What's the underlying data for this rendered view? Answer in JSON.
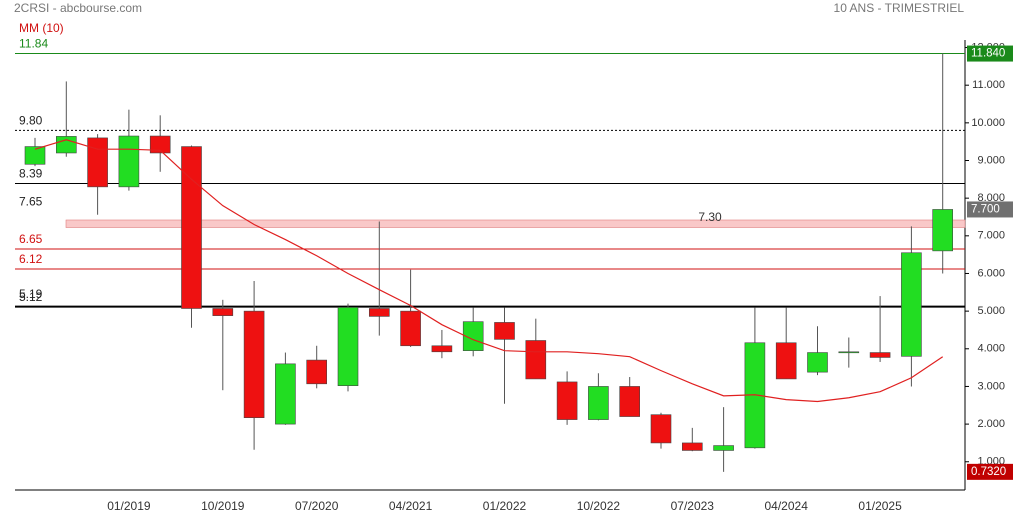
{
  "chart_data": {
    "type": "candlestick",
    "title": "2CRSI - abcbourse.com",
    "subtitle": "10 ANS - TRIMESTRIEL",
    "categories": [
      null,
      null,
      null,
      "01/2019",
      null,
      null,
      "10/2019",
      null,
      null,
      "07/2020",
      null,
      null,
      "04/2021",
      null,
      null,
      "01/2022",
      null,
      null,
      "10/2022",
      null,
      null,
      "07/2023",
      null,
      null,
      "04/2024",
      null,
      null,
      "01/2025",
      null,
      null
    ],
    "open": [
      8.9,
      9.2,
      9.6,
      8.3,
      9.65,
      9.37,
      5.07,
      5.0,
      2.0,
      3.7,
      3.02,
      5.07,
      5.0,
      4.08,
      3.95,
      4.7,
      4.22,
      3.12,
      2.12,
      3.0,
      2.25,
      1.5,
      1.3,
      1.37,
      4.16,
      3.38,
      3.9,
      3.9,
      3.8,
      6.6
    ],
    "high": [
      9.6,
      11.1,
      9.7,
      10.35,
      10.2,
      9.4,
      5.3,
      5.8,
      3.9,
      4.08,
      5.2,
      7.38,
      6.1,
      4.5,
      5.1,
      5.1,
      4.8,
      3.4,
      3.35,
      3.25,
      2.3,
      1.9,
      2.45,
      5.1,
      5.1,
      4.6,
      4.3,
      5.4,
      7.25,
      11.84
    ],
    "low": [
      8.85,
      9.1,
      7.56,
      8.2,
      8.7,
      4.56,
      2.9,
      1.32,
      1.98,
      2.95,
      2.87,
      4.35,
      4.05,
      3.75,
      3.8,
      2.54,
      3.2,
      1.98,
      2.1,
      2.2,
      1.35,
      1.28,
      0.732,
      1.35,
      3.2,
      3.3,
      3.5,
      3.65,
      3.0,
      6.0
    ],
    "close": [
      9.37,
      9.64,
      8.3,
      9.65,
      9.2,
      5.07,
      4.88,
      2.17,
      3.6,
      3.07,
      5.1,
      4.86,
      4.08,
      3.92,
      4.72,
      4.25,
      3.2,
      2.12,
      3.0,
      2.2,
      1.5,
      1.3,
      1.43,
      4.16,
      3.2,
      3.9,
      3.92,
      3.77,
      6.55,
      7.7
    ],
    "up_color": "#22dd22",
    "down_color": "#ee1111",
    "ma": {
      "name": "MM (10)",
      "color": "#e02020",
      "values": [
        9.3,
        9.55,
        9.3,
        9.3,
        9.27,
        8.5,
        7.8,
        7.3,
        6.9,
        6.47,
        6.0,
        5.57,
        5.15,
        4.64,
        4.24,
        3.95,
        3.92,
        3.92,
        3.87,
        3.79,
        3.42,
        3.07,
        2.75,
        2.78,
        2.65,
        2.6,
        2.7,
        2.86,
        3.23,
        3.79
      ]
    },
    "ylim": [
      0.25,
      12.2
    ],
    "yticks": [
      {
        "value": 12,
        "label": "12.000"
      },
      {
        "value": 11,
        "label": "11.000"
      },
      {
        "value": 10,
        "label": "10.000"
      },
      {
        "value": 9,
        "label": "9.000"
      },
      {
        "value": 8,
        "label": "8.000"
      },
      {
        "value": 7,
        "label": "7.000"
      },
      {
        "value": 6,
        "label": "6.000"
      },
      {
        "value": 5,
        "label": "5.000"
      },
      {
        "value": 4,
        "label": "4.000"
      },
      {
        "value": 3,
        "label": "3.000"
      },
      {
        "value": 2,
        "label": "2.000"
      },
      {
        "value": 1,
        "label": "1.000"
      }
    ],
    "levels": [
      {
        "value": 11.84,
        "color": "#1a8a1a",
        "style": "solid"
      },
      {
        "value": 9.8,
        "label": "9.80",
        "color": "#000000",
        "style": "dotted"
      },
      {
        "value": 8.39,
        "color": "#000000",
        "style": "solid"
      },
      {
        "value": 7.65,
        "color": "#000000",
        "style": "none"
      },
      {
        "value": 6.65,
        "color": "#d01010",
        "style": "solid"
      },
      {
        "value": 6.12,
        "color": "#d01010",
        "style": "solid"
      },
      {
        "value": 5.19,
        "color": "#000000",
        "style": "none"
      },
      {
        "value": 5.12,
        "color": "#000000",
        "style": "thick"
      }
    ],
    "zone": {
      "low": 7.22,
      "high": 7.42,
      "label": "7.30",
      "color": "#f9c8c8"
    },
    "last_labels": [
      {
        "value": 11.84,
        "label": "11.840",
        "color": "#1a8a1a"
      },
      {
        "value": 7.7,
        "label": "7.700",
        "color": "#707070"
      },
      {
        "value": 0.732,
        "label": "0.7320",
        "color": "#c00000"
      }
    ]
  }
}
